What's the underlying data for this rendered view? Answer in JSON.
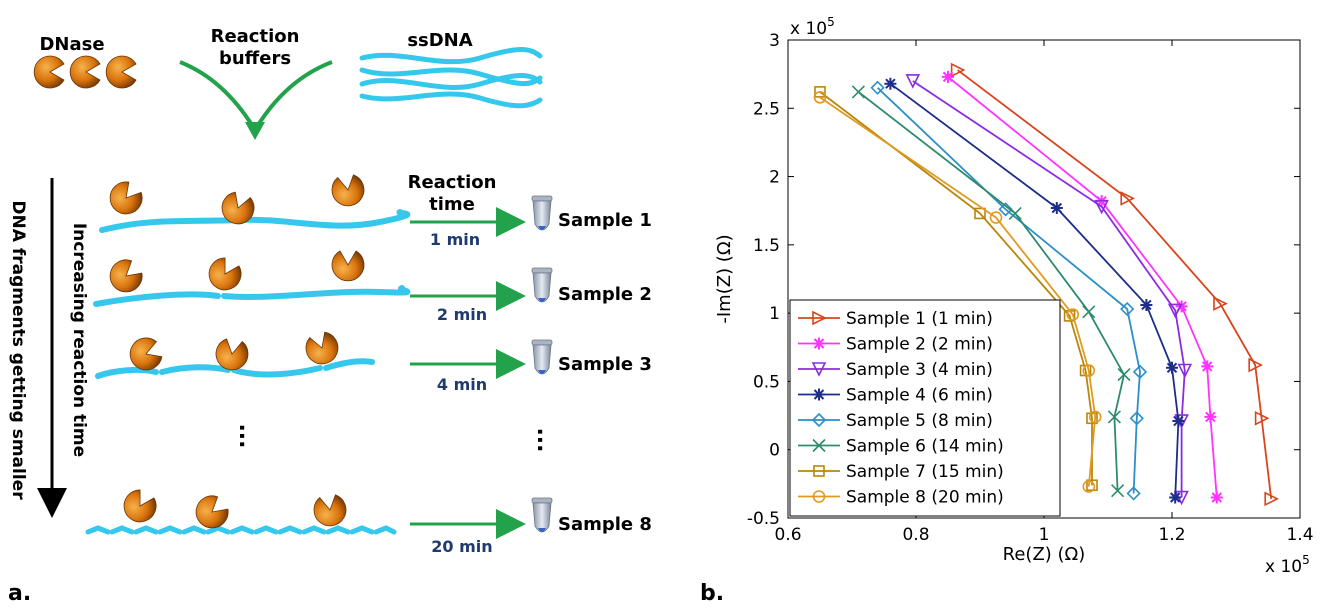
{
  "panel_a": {
    "label": "a.",
    "dnase": "DNase",
    "buffers_line1": "Reaction",
    "buffers_line2": "buffers",
    "ssdna": "ssDNA",
    "reaction_time_line1": "Reaction",
    "reaction_time_line2": "time",
    "vertical_arrow_line1": "Increasing reaction time",
    "vertical_arrow_line2": "DNA fragments getting smaller",
    "rows": [
      {
        "time": "1 min",
        "sample": "Sample 1"
      },
      {
        "time": "2 min",
        "sample": "Sample 2"
      },
      {
        "time": "4 min",
        "sample": "Sample 3"
      },
      {
        "time": "20 min",
        "sample": "Sample 8"
      }
    ],
    "colors": {
      "dna": "#35c8ec",
      "arrow_green": "#22a24a",
      "time_text": "#1f3a6e",
      "dnase": "#e07b10"
    }
  },
  "panel_b": {
    "label": "b."
  },
  "chart_data": {
    "type": "line",
    "xlabel": "Re(Z) (Ω)",
    "ylabel": "-Im(Z) (Ω)",
    "x_multiplier": "x 10",
    "y_multiplier": "x 10",
    "multiplier_exponent": "5",
    "xlim": [
      0.6,
      1.4
    ],
    "ylim": [
      -0.5,
      3
    ],
    "x_ticks": [
      "0.6",
      "0.8",
      "1",
      "1.2",
      "1.4"
    ],
    "y_ticks": [
      "-0.5",
      "0",
      "0.5",
      "1",
      "1.5",
      "2",
      "2.5",
      "3"
    ],
    "x_tick_values": [
      0.6,
      0.8,
      1.0,
      1.2,
      1.4
    ],
    "y_tick_values": [
      -0.5,
      0,
      0.5,
      1.0,
      1.5,
      2.0,
      2.5,
      3.0
    ],
    "grid": false,
    "legend_position": "bottom-left",
    "series": [
      {
        "name": "Sample 1 (1 min)",
        "color": "#d9441a",
        "marker": "triangle-right",
        "x": [
          0.865,
          1.13,
          1.275,
          1.33,
          1.34,
          1.355
        ],
        "y": [
          2.78,
          1.84,
          1.07,
          0.62,
          0.23,
          -0.36
        ]
      },
      {
        "name": "Sample 2 (2 min)",
        "color": "#ff33ff",
        "marker": "star",
        "x": [
          0.85,
          1.09,
          1.215,
          1.255,
          1.26,
          1.27
        ],
        "y": [
          2.73,
          1.82,
          1.05,
          0.61,
          0.24,
          -0.35
        ]
      },
      {
        "name": "Sample 3 (4 min)",
        "color": "#8a2be2",
        "marker": "triangle-down",
        "x": [
          0.795,
          1.09,
          1.205,
          1.22,
          1.215,
          1.215
        ],
        "y": [
          2.7,
          1.78,
          1.02,
          0.58,
          0.21,
          -0.35
        ]
      },
      {
        "name": "Sample 4 (6 min)",
        "color": "#1c2d8a",
        "marker": "star",
        "x": [
          0.76,
          1.02,
          1.16,
          1.2,
          1.21,
          1.205
        ],
        "y": [
          2.68,
          1.77,
          1.06,
          0.6,
          0.21,
          -0.35
        ]
      },
      {
        "name": "Sample 5 (8 min)",
        "color": "#2a8fc9",
        "marker": "diamond",
        "x": [
          0.74,
          0.94,
          1.13,
          1.15,
          1.145,
          1.14
        ],
        "y": [
          2.65,
          1.76,
          1.03,
          0.57,
          0.23,
          -0.32
        ]
      },
      {
        "name": "Sample 6 (14 min)",
        "color": "#2e8b6b",
        "marker": "x",
        "x": [
          0.71,
          0.955,
          1.07,
          1.125,
          1.11,
          1.115
        ],
        "y": [
          2.62,
          1.73,
          1.01,
          0.55,
          0.24,
          -0.3
        ]
      },
      {
        "name": "Sample 7 (15 min)",
        "color": "#b8860b",
        "marker": "square",
        "x": [
          0.65,
          0.9,
          1.04,
          1.065,
          1.075,
          1.075
        ],
        "y": [
          2.62,
          1.73,
          0.98,
          0.58,
          0.23,
          -0.26
        ]
      },
      {
        "name": "Sample 8 (20 min)",
        "color": "#e09a20",
        "marker": "circle",
        "x": [
          0.65,
          0.925,
          1.045,
          1.07,
          1.08,
          1.07
        ],
        "y": [
          2.58,
          1.7,
          0.99,
          0.58,
          0.24,
          -0.27
        ]
      }
    ]
  }
}
